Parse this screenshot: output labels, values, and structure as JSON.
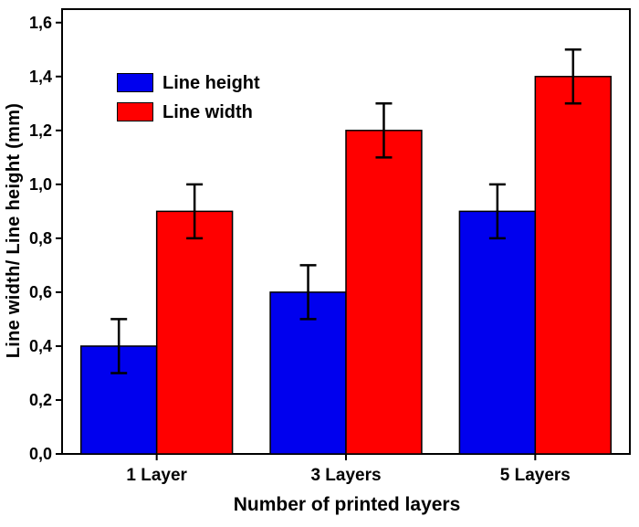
{
  "chart_data": {
    "type": "bar",
    "categories": [
      "1 Layer",
      "3 Layers",
      "5 Layers"
    ],
    "series": [
      {
        "name": "Line height",
        "color": "#0000ee",
        "values": [
          0.4,
          0.6,
          0.9
        ],
        "errors": [
          0.1,
          0.1,
          0.1
        ]
      },
      {
        "name": "Line width",
        "color": "#ff0000",
        "values": [
          0.9,
          1.2,
          1.4
        ],
        "errors": [
          0.1,
          0.1,
          0.1
        ]
      }
    ],
    "title": "",
    "xlabel": "Number of printed layers",
    "ylabel": "Line width/ Line height (mm)",
    "ylim": [
      0,
      1.65
    ],
    "ytick_step": 0.2,
    "ytick_labels": [
      "0,0",
      "0,2",
      "0,4",
      "0,6",
      "0,8",
      "1,0",
      "1,2",
      "1,4",
      "1,6"
    ],
    "legend_position": "top-left",
    "grid": false,
    "error_bars": true
  }
}
